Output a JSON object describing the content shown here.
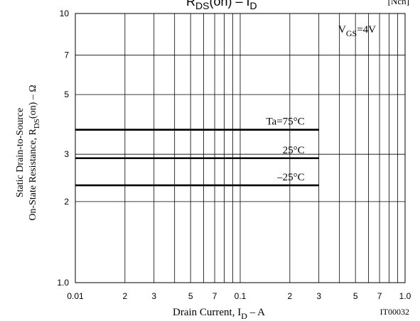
{
  "chart_data": {
    "type": "line",
    "title": "R",
    "title_sub": "DS",
    "title_tail": "(on) – I",
    "title_sub2": "D",
    "tag": "[Nch]",
    "condition_main": "V",
    "condition_sub": "GS",
    "condition_tail": "=4V",
    "xlabel_main": "Drain Current, I",
    "xlabel_sub": "D",
    "xlabel_tail": " – A",
    "ylabel_line1": "Static Drain-to-Source",
    "ylabel_line2_main": "On-State Resistance, R",
    "ylabel_line2_sub": "DS",
    "ylabel_line2_tail": "(on)  –  Ω",
    "figure_id": "IT00032",
    "x_scale": "log",
    "y_scale": "log",
    "xlim": [
      0.01,
      1.0
    ],
    "ylim": [
      1.0,
      10
    ],
    "x_ticks": [
      {
        "value": 0.01,
        "label": "0.01"
      },
      {
        "value": 0.02,
        "label": "2"
      },
      {
        "value": 0.03,
        "label": "3"
      },
      {
        "value": 0.05,
        "label": "5"
      },
      {
        "value": 0.07,
        "label": "7"
      },
      {
        "value": 0.1,
        "label": "0.1"
      },
      {
        "value": 0.2,
        "label": "2"
      },
      {
        "value": 0.3,
        "label": "3"
      },
      {
        "value": 0.5,
        "label": "5"
      },
      {
        "value": 0.7,
        "label": "7"
      },
      {
        "value": 1.0,
        "label": "1.0"
      }
    ],
    "y_ticks": [
      {
        "value": 1.0,
        "label": "1.0"
      },
      {
        "value": 2,
        "label": "2"
      },
      {
        "value": 3,
        "label": "3"
      },
      {
        "value": 5,
        "label": "5"
      },
      {
        "value": 7,
        "label": "7"
      },
      {
        "value": 10,
        "label": "10"
      }
    ],
    "x_grid": [
      0.02,
      0.03,
      0.04,
      0.05,
      0.06,
      0.07,
      0.08,
      0.09,
      0.1,
      0.2,
      0.3,
      0.4,
      0.5,
      0.6,
      0.7,
      0.8,
      0.9
    ],
    "y_grid": [
      2,
      3,
      5,
      7
    ],
    "grid": true,
    "series": [
      {
        "name": "Ta=75°C",
        "x": [
          0.01,
          0.3
        ],
        "y": [
          3.7,
          3.7
        ]
      },
      {
        "name": "25°C",
        "x": [
          0.01,
          0.3
        ],
        "y": [
          2.9,
          2.9
        ]
      },
      {
        "name": "–25°C",
        "x": [
          0.01,
          0.3
        ],
        "y": [
          2.3,
          2.3
        ]
      }
    ]
  }
}
